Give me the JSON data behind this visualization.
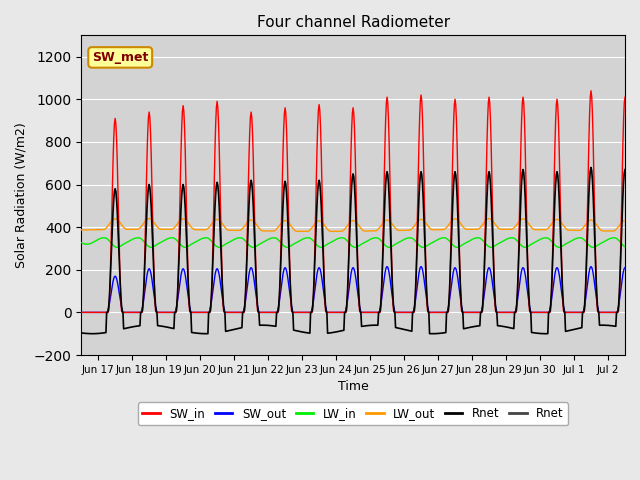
{
  "title": "Four channel Radiometer",
  "xlabel": "Time",
  "ylabel": "Solar Radiation (W/m2)",
  "ylim": [
    -200,
    1300
  ],
  "yticks": [
    -200,
    0,
    200,
    400,
    600,
    800,
    1000,
    1200
  ],
  "background_color": "#e8e8e8",
  "plot_bg_color": "#d3d3d3",
  "colors": {
    "SW_in": "#ff0000",
    "SW_out": "#0000ff",
    "LW_in": "#00ee00",
    "LW_out": "#ff9900",
    "Rnet_black": "#000000",
    "Rnet_dark": "#444444"
  },
  "annotation_text": "SW_met",
  "tick_labels": [
    "Jun 17",
    "Jun 18",
    "Jun 19",
    "Jun 20",
    "Jun 21",
    "Jun 22",
    "Jun 23",
    "Jun 24",
    "Jun 25",
    "Jun 26",
    "Jun 27",
    "Jun 28",
    "Jun 29",
    "Jun 30",
    "Jul 1",
    "Jul 2"
  ],
  "legend_entries": [
    "SW_in",
    "SW_out",
    "LW_in",
    "LW_out",
    "Rnet",
    "Rnet"
  ],
  "legend_colors": [
    "#ff0000",
    "#0000ff",
    "#00ee00",
    "#ff9900",
    "#000000",
    "#444444"
  ]
}
